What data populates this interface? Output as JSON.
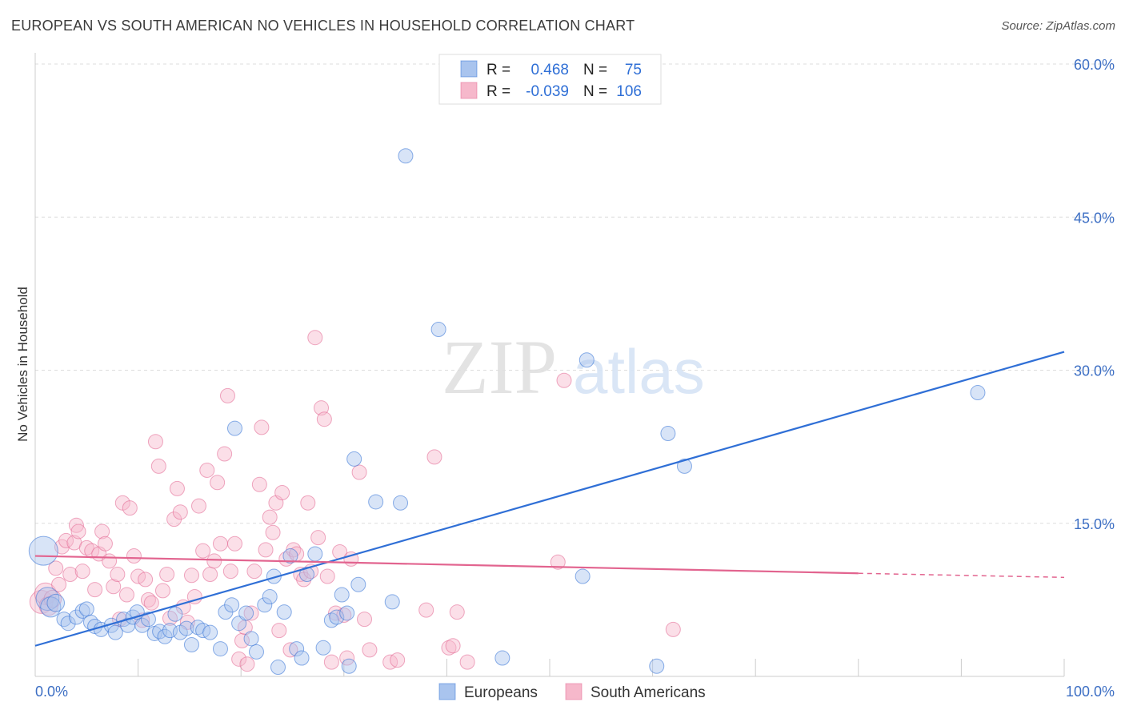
{
  "title": "EUROPEAN VS SOUTH AMERICAN NO VEHICLES IN HOUSEHOLD CORRELATION CHART",
  "source": "Source: ZipAtlas.com",
  "watermark": {
    "zip": "ZIP",
    "atlas": "atlas"
  },
  "colors": {
    "blue": "#2f6fd6",
    "blue_fill": "#a9c4ee",
    "pink": "#e2648f",
    "pink_fill": "#f6b8cb",
    "grid": "#dddddd",
    "tick_text": "#3d6fc4"
  },
  "legend": {
    "rows": [
      {
        "r_label": "R =",
        "r_value": "0.468",
        "n_label": "N =",
        "n_value": "75",
        "series": "Europeans"
      },
      {
        "r_label": "R =",
        "r_value": "-0.039",
        "n_label": "N =",
        "n_value": "106",
        "series": "South Americans"
      }
    ]
  },
  "bottom_legend": [
    "Europeans",
    "South Americans"
  ],
  "chart_data": {
    "type": "scatter",
    "title": "EUROPEAN VS SOUTH AMERICAN NO VEHICLES IN HOUSEHOLD CORRELATION CHART",
    "xlabel": "",
    "ylabel": "No Vehicles in Household",
    "xlim": [
      0,
      100
    ],
    "ylim": [
      0,
      60
    ],
    "x_tick_labels": [
      "0.0%",
      "100.0%"
    ],
    "y_ticks": [
      15,
      30,
      45,
      60
    ],
    "y_tick_labels": [
      "15.0%",
      "30.0%",
      "45.0%",
      "60.0%"
    ],
    "grid": true,
    "legend_position": "top-center",
    "series": [
      {
        "name": "Europeans",
        "r": 0.468,
        "n": 75,
        "trend": {
          "x": [
            0,
            100
          ],
          "y": [
            3.0,
            31.8
          ]
        },
        "points": [
          [
            0.8,
            12.3,
            2
          ],
          [
            1.2,
            7.6,
            1.6
          ],
          [
            1.5,
            6.8,
            1.4
          ],
          [
            2.0,
            7.2,
            1.2
          ],
          [
            2.8,
            5.6,
            1
          ],
          [
            3.2,
            5.2,
            1
          ],
          [
            4.0,
            5.8,
            1
          ],
          [
            4.6,
            6.4,
            1
          ],
          [
            5.0,
            6.6,
            1
          ],
          [
            5.4,
            5.3,
            1
          ],
          [
            5.8,
            4.9,
            1
          ],
          [
            6.4,
            4.6,
            1
          ],
          [
            7.4,
            5.0,
            1
          ],
          [
            7.8,
            4.3,
            1
          ],
          [
            8.6,
            5.6,
            1
          ],
          [
            9.0,
            5.0,
            1
          ],
          [
            9.5,
            5.8,
            1
          ],
          [
            9.9,
            6.3,
            1
          ],
          [
            10.4,
            5.0,
            1
          ],
          [
            11.0,
            5.6,
            1
          ],
          [
            11.6,
            4.2,
            1
          ],
          [
            12.1,
            4.4,
            1
          ],
          [
            12.6,
            3.9,
            1
          ],
          [
            13.1,
            4.5,
            1
          ],
          [
            13.6,
            6.1,
            1
          ],
          [
            14.1,
            4.3,
            1
          ],
          [
            14.7,
            4.7,
            1
          ],
          [
            15.2,
            3.1,
            1
          ],
          [
            15.8,
            4.8,
            1
          ],
          [
            16.3,
            4.5,
            1
          ],
          [
            17.0,
            4.3,
            1
          ],
          [
            18.0,
            2.7,
            1
          ],
          [
            18.5,
            6.3,
            1
          ],
          [
            19.1,
            7.0,
            1
          ],
          [
            19.8,
            5.2,
            1
          ],
          [
            20.5,
            6.2,
            1
          ],
          [
            21.0,
            3.7,
            1
          ],
          [
            21.5,
            2.4,
            1
          ],
          [
            22.3,
            7.0,
            1
          ],
          [
            22.8,
            7.8,
            1
          ],
          [
            23.2,
            9.8,
            1
          ],
          [
            23.6,
            0.9,
            1
          ],
          [
            24.2,
            6.3,
            1
          ],
          [
            24.8,
            11.8,
            1
          ],
          [
            25.4,
            2.7,
            1
          ],
          [
            25.9,
            1.8,
            1
          ],
          [
            26.4,
            10.0,
            1
          ],
          [
            27.2,
            12.0,
            1
          ],
          [
            28.0,
            2.8,
            1
          ],
          [
            28.8,
            5.5,
            1
          ],
          [
            29.3,
            5.8,
            1
          ],
          [
            29.8,
            8.0,
            1
          ],
          [
            30.3,
            6.2,
            1
          ],
          [
            30.5,
            1.0,
            1
          ],
          [
            31.0,
            21.3,
            1
          ],
          [
            31.4,
            9.0,
            1
          ],
          [
            33.1,
            17.1,
            1
          ],
          [
            34.7,
            7.3,
            1
          ],
          [
            35.5,
            17.0,
            1
          ],
          [
            19.4,
            24.3,
            1
          ],
          [
            36.0,
            51.0,
            1
          ],
          [
            39.2,
            34.0,
            1
          ],
          [
            45.4,
            1.8,
            1
          ],
          [
            53.2,
            9.8,
            1
          ],
          [
            53.6,
            31.0,
            1
          ],
          [
            60.4,
            1.0,
            1
          ],
          [
            61.5,
            23.8,
            1
          ],
          [
            63.1,
            20.6,
            1
          ],
          [
            91.6,
            27.8,
            1
          ]
        ]
      },
      {
        "name": "South Americans",
        "r": -0.039,
        "n": 106,
        "trend": {
          "x": [
            0,
            80
          ],
          "y": [
            11.8,
            10.1
          ],
          "dashed_to": [
            100,
            9.7
          ]
        },
        "points": [
          [
            0.6,
            7.3,
            1.6
          ],
          [
            1.0,
            8.1,
            1.5
          ],
          [
            1.3,
            6.9,
            1.3
          ],
          [
            1.7,
            7.6,
            1.2
          ],
          [
            2.0,
            10.6,
            1
          ],
          [
            2.3,
            9.0,
            1
          ],
          [
            2.6,
            12.7,
            1
          ],
          [
            3.0,
            13.3,
            1
          ],
          [
            3.4,
            10.0,
            1
          ],
          [
            3.8,
            13.1,
            1
          ],
          [
            4.0,
            14.8,
            1
          ],
          [
            4.2,
            14.2,
            1
          ],
          [
            4.6,
            10.3,
            1
          ],
          [
            5.0,
            12.6,
            1
          ],
          [
            5.5,
            12.3,
            1
          ],
          [
            5.8,
            8.5,
            1
          ],
          [
            6.2,
            12.0,
            1
          ],
          [
            6.5,
            14.2,
            1
          ],
          [
            6.8,
            13.0,
            1
          ],
          [
            7.2,
            11.3,
            1
          ],
          [
            7.6,
            8.8,
            1
          ],
          [
            8.0,
            10.0,
            1
          ],
          [
            8.2,
            5.6,
            1
          ],
          [
            8.5,
            17.0,
            1
          ],
          [
            8.9,
            8.0,
            1
          ],
          [
            9.2,
            16.5,
            1
          ],
          [
            9.6,
            11.8,
            1
          ],
          [
            10.0,
            9.8,
            1
          ],
          [
            10.4,
            5.5,
            1
          ],
          [
            10.7,
            9.5,
            1
          ],
          [
            11.0,
            7.5,
            1
          ],
          [
            11.3,
            7.2,
            1
          ],
          [
            11.7,
            23.0,
            1
          ],
          [
            12.0,
            20.6,
            1
          ],
          [
            12.4,
            8.4,
            1
          ],
          [
            12.8,
            10.0,
            1
          ],
          [
            13.1,
            5.7,
            1
          ],
          [
            13.5,
            15.4,
            1
          ],
          [
            13.8,
            18.4,
            1
          ],
          [
            14.1,
            16.1,
            1
          ],
          [
            14.4,
            6.8,
            1
          ],
          [
            14.8,
            5.3,
            1
          ],
          [
            15.2,
            9.9,
            1
          ],
          [
            15.5,
            7.8,
            1
          ],
          [
            15.9,
            16.7,
            1
          ],
          [
            16.3,
            12.3,
            1
          ],
          [
            16.7,
            20.2,
            1
          ],
          [
            17.0,
            10.0,
            1
          ],
          [
            17.4,
            11.3,
            1
          ],
          [
            17.7,
            19.0,
            1
          ],
          [
            18.0,
            13.0,
            1
          ],
          [
            18.4,
            21.8,
            1
          ],
          [
            18.7,
            27.5,
            1
          ],
          [
            19.0,
            10.3,
            1
          ],
          [
            19.4,
            13.0,
            1
          ],
          [
            19.8,
            1.7,
            1
          ],
          [
            20.1,
            3.5,
            1
          ],
          [
            20.4,
            4.8,
            1
          ],
          [
            20.6,
            1.2,
            1
          ],
          [
            21.0,
            6.2,
            1
          ],
          [
            21.3,
            10.3,
            1
          ],
          [
            21.8,
            18.8,
            1
          ],
          [
            22.0,
            24.4,
            1
          ],
          [
            22.4,
            12.4,
            1
          ],
          [
            22.8,
            15.6,
            1
          ],
          [
            23.1,
            14.1,
            1
          ],
          [
            23.4,
            17.0,
            1
          ],
          [
            23.7,
            4.5,
            1
          ],
          [
            24.0,
            18.0,
            1
          ],
          [
            24.4,
            11.5,
            1
          ],
          [
            24.8,
            2.6,
            1
          ],
          [
            25.1,
            12.4,
            1
          ],
          [
            25.4,
            12.0,
            1
          ],
          [
            25.8,
            10.0,
            1
          ],
          [
            26.1,
            9.5,
            1
          ],
          [
            26.5,
            17.0,
            1
          ],
          [
            26.8,
            10.3,
            1
          ],
          [
            27.2,
            33.2,
            1
          ],
          [
            27.5,
            13.6,
            1
          ],
          [
            27.8,
            26.3,
            1
          ],
          [
            28.1,
            25.2,
            1
          ],
          [
            28.4,
            9.8,
            1
          ],
          [
            28.8,
            1.4,
            1
          ],
          [
            29.2,
            6.2,
            1
          ],
          [
            29.6,
            12.2,
            1
          ],
          [
            30.0,
            6.0,
            1
          ],
          [
            30.3,
            1.8,
            1
          ],
          [
            30.7,
            11.5,
            1
          ],
          [
            31.5,
            20.0,
            1
          ],
          [
            32.0,
            5.6,
            1
          ],
          [
            32.5,
            2.6,
            1
          ],
          [
            34.5,
            1.4,
            1
          ],
          [
            35.2,
            1.6,
            1
          ],
          [
            38.0,
            6.5,
            1
          ],
          [
            38.8,
            21.5,
            1
          ],
          [
            40.2,
            2.8,
            1
          ],
          [
            40.6,
            3.0,
            1
          ],
          [
            41.0,
            6.3,
            1
          ],
          [
            42.0,
            1.4,
            1
          ],
          [
            50.8,
            11.2,
            1
          ],
          [
            51.4,
            29.0,
            1
          ],
          [
            62.0,
            4.6,
            1
          ]
        ]
      }
    ]
  }
}
